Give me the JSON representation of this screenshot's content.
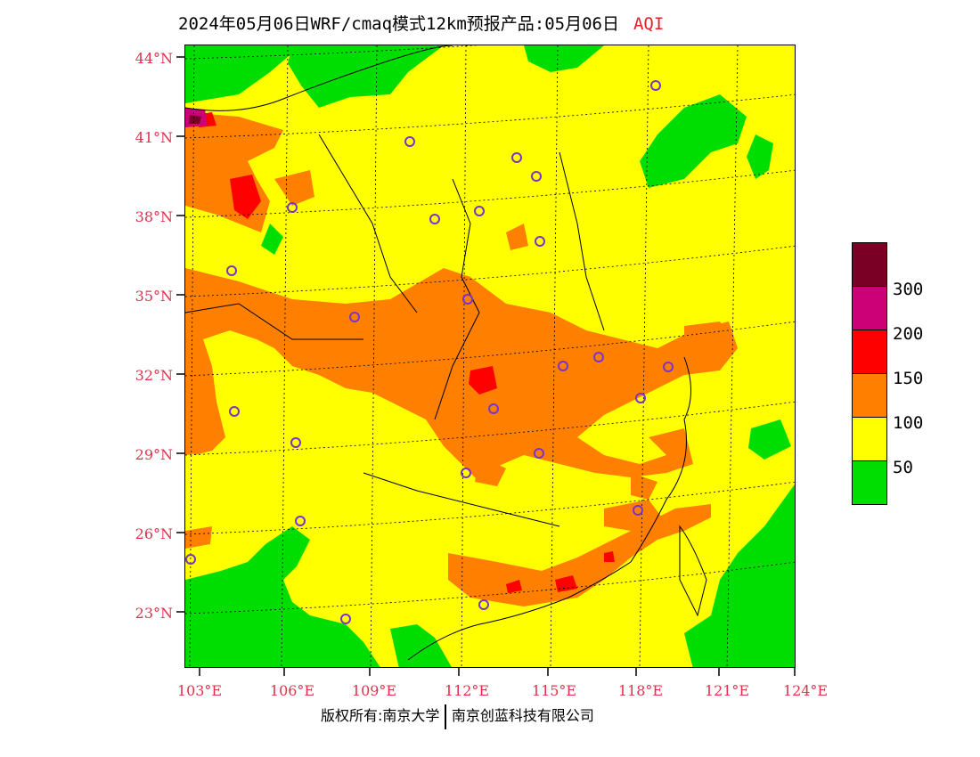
{
  "title": {
    "main": "2024年05月06日WRF/cmaq模式12km预报产品:05月06日",
    "variable": "AQI"
  },
  "map": {
    "latitude_labels": [
      "44°N",
      "41°N",
      "38°N",
      "35°N",
      "32°N",
      "29°N",
      "26°N",
      "23°N"
    ],
    "longitude_labels": [
      "103°E",
      "106°E",
      "109°E",
      "112°E",
      "115°E",
      "118°E",
      "121°E",
      "124°E"
    ],
    "colors": {
      "good": "#00dd00",
      "moderate": "#ffff00",
      "unhealthy_sensitive": "#ff7f00",
      "unhealthy": "#ff0000",
      "very_unhealthy": "#cc0077",
      "hazardous": "#7a0026"
    },
    "station_marker_color": "#7a33cc"
  },
  "legend": {
    "colors": [
      "#7a0026",
      "#cc0077",
      "#ff0000",
      "#ff7f00",
      "#ffff00",
      "#00dd00"
    ],
    "labels": [
      "300",
      "200",
      "150",
      "100",
      "50"
    ]
  },
  "footer": {
    "copyright": "版权所有:南京大学",
    "company": "南京创蓝科技有限公司"
  }
}
